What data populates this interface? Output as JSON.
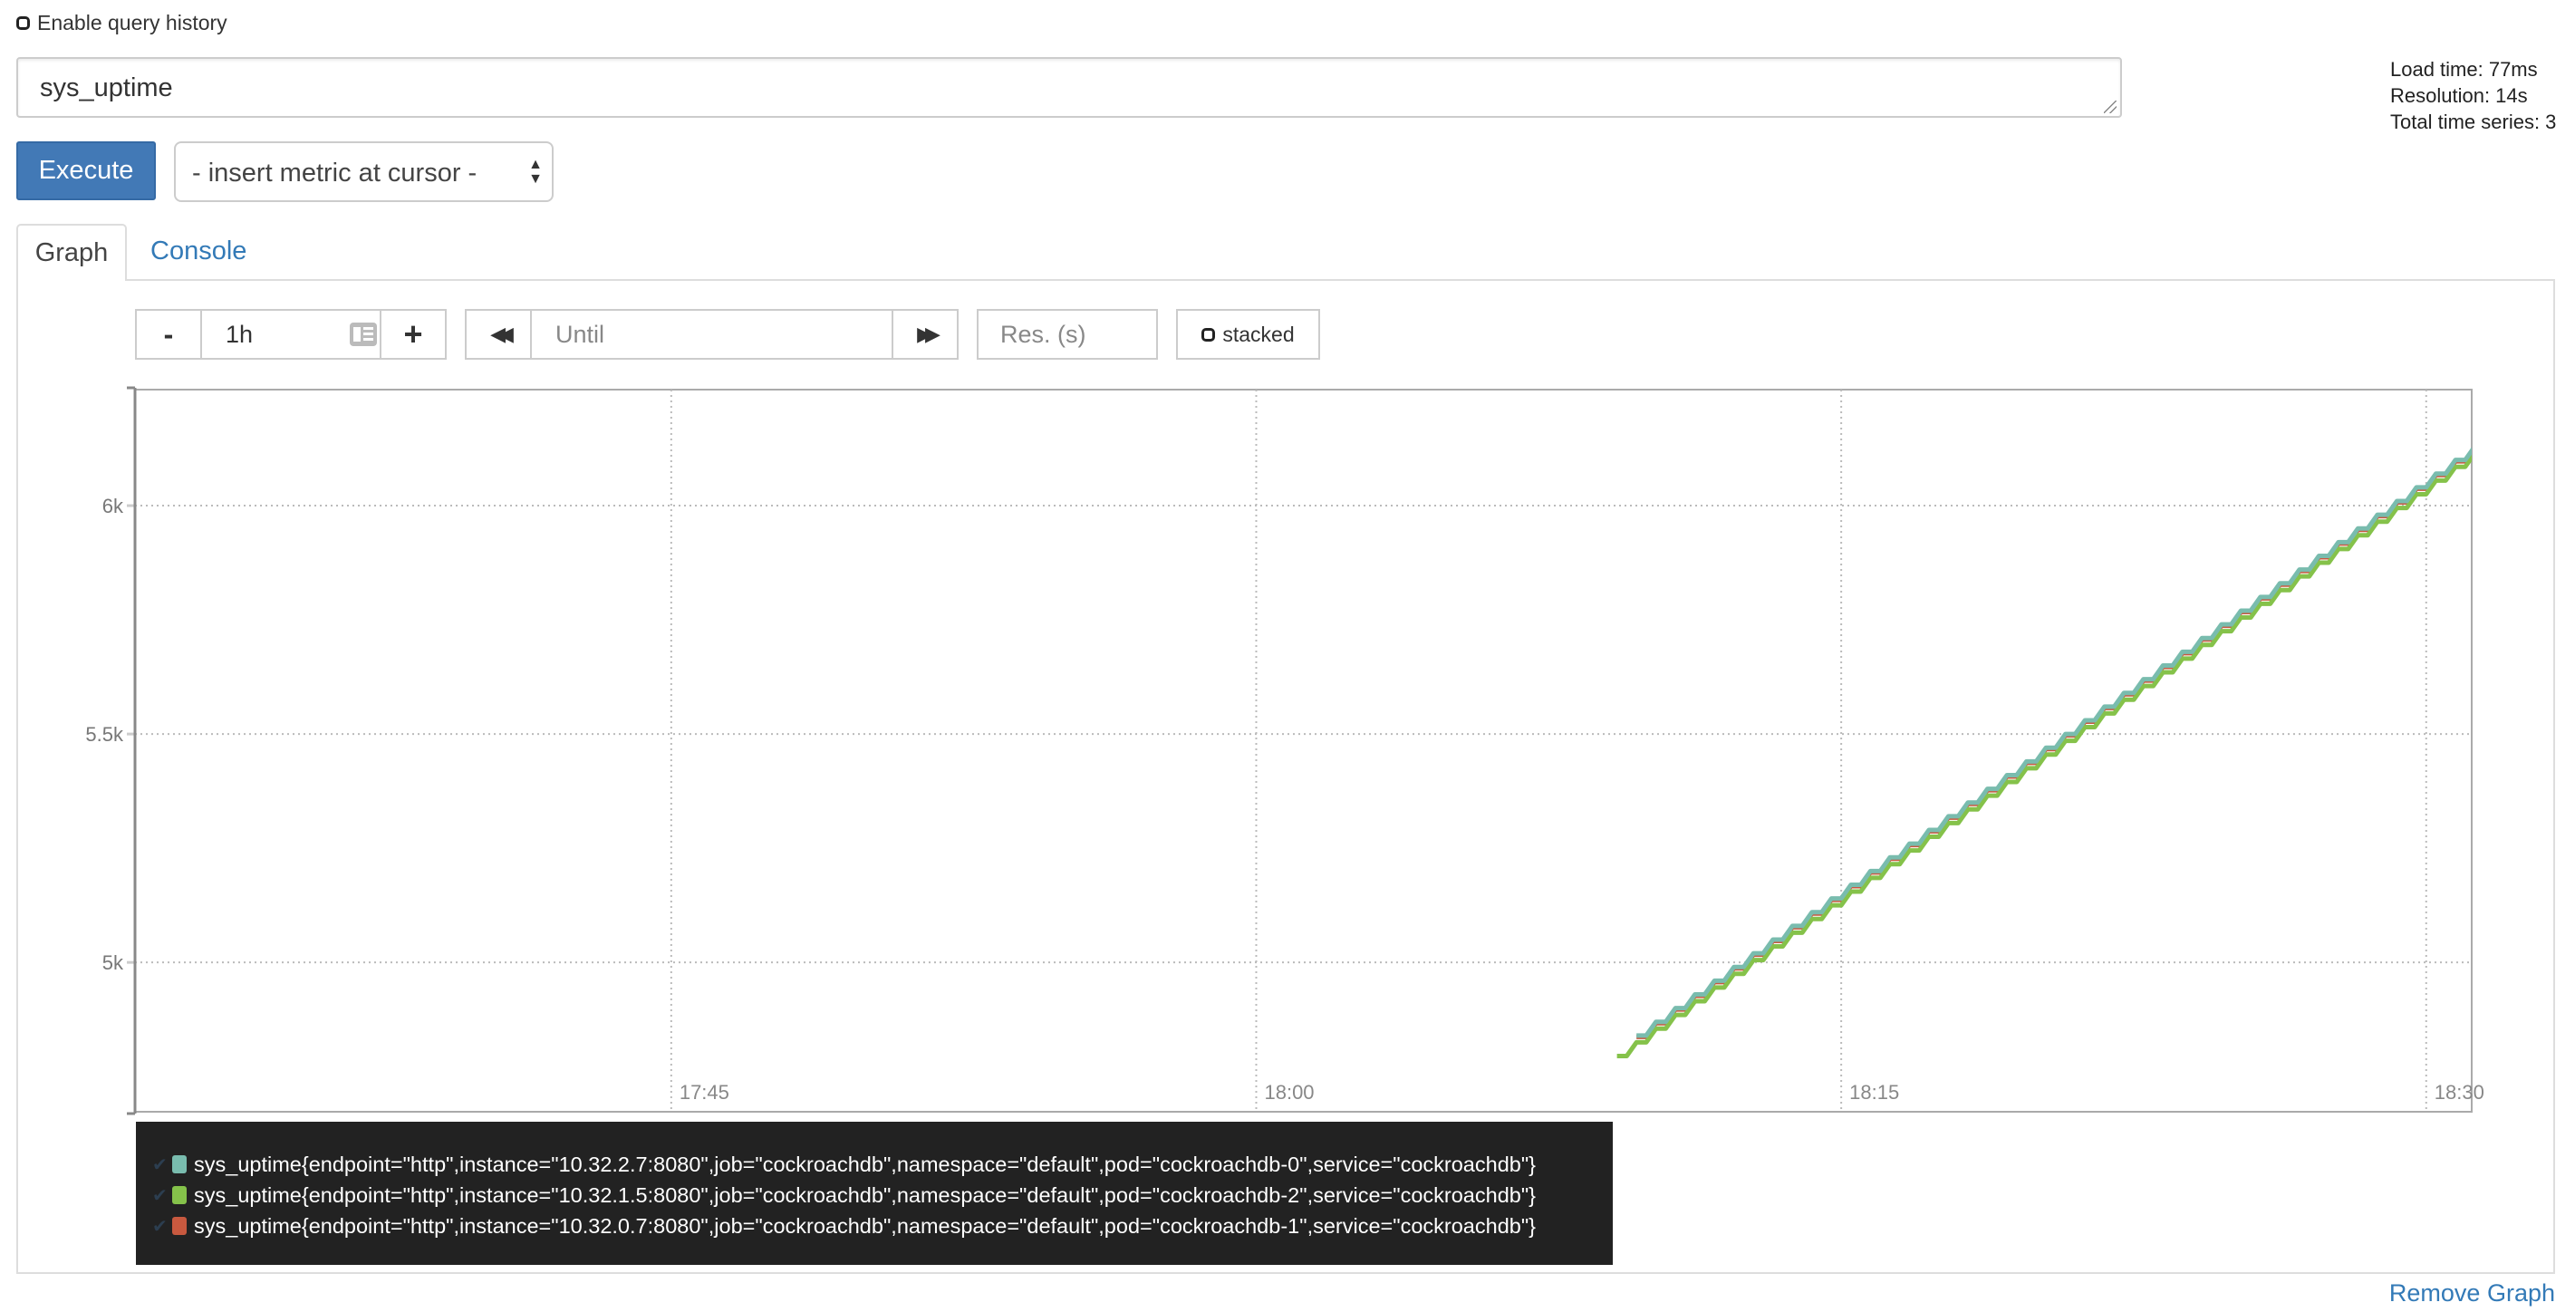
{
  "history": {
    "label": "Enable query history",
    "checked": false
  },
  "query": {
    "value": "sys_uptime"
  },
  "stats": {
    "load_time": "Load time: 77ms",
    "resolution": "Resolution: 14s",
    "total_series": "Total time series: 3"
  },
  "toolbar": {
    "execute_label": "Execute",
    "metric_select": "- insert metric at cursor -"
  },
  "tabs": [
    {
      "label": "Graph",
      "active": true
    },
    {
      "label": "Console",
      "active": false
    }
  ],
  "controls": {
    "minus": "-",
    "range": "1h",
    "plus": "+",
    "until_placeholder": "Until",
    "resolution_placeholder": "Res. (s)",
    "stacked_label": "stacked",
    "stacked_checked": false
  },
  "chart_data": {
    "type": "line",
    "xlim": [
      "17:31:15",
      "18:31:10"
    ],
    "ylim": [
      4673,
      6254
    ],
    "grid": true,
    "x_ticks": [
      "17:45",
      "18:00",
      "18:15",
      "18:30"
    ],
    "y_ticks": [
      {
        "value": 5000,
        "label": "5k"
      },
      {
        "value": 5500,
        "label": "5.5k"
      },
      {
        "value": 6000,
        "label": "6k"
      }
    ],
    "x": [
      "18:09:15",
      "18:09:45",
      "18:10:15",
      "18:10:45",
      "18:11:15",
      "18:11:45",
      "18:12:15",
      "18:12:45",
      "18:13:15",
      "18:13:45",
      "18:14:15",
      "18:14:45",
      "18:15:15",
      "18:15:45",
      "18:16:15",
      "18:16:45",
      "18:17:15",
      "18:17:45",
      "18:18:15",
      "18:18:45",
      "18:19:15",
      "18:19:45",
      "18:20:15",
      "18:20:45",
      "18:21:15",
      "18:21:45",
      "18:22:15",
      "18:22:45",
      "18:23:15",
      "18:23:45",
      "18:24:15",
      "18:24:45",
      "18:25:15",
      "18:25:45",
      "18:26:15",
      "18:26:45",
      "18:27:15",
      "18:27:45",
      "18:28:15",
      "18:28:45",
      "18:29:15",
      "18:29:45",
      "18:30:15",
      "18:30:45"
    ],
    "series": [
      {
        "name": "sys_uptime{endpoint=\"http\",instance=\"10.32.0.7:8080\",job=\"cockroachdb\",namespace=\"default\",pod=\"cockroachdb-1\",service=\"cockroachdb\"}",
        "color": "#c8593f",
        "values": [
          null,
          4837,
          4867,
          4897,
          4927,
          4957,
          4987,
          5017,
          5047,
          5077,
          5107,
          5137,
          5167,
          5197,
          5227,
          5257,
          5287,
          5317,
          5347,
          5377,
          5407,
          5437,
          5467,
          5497,
          5527,
          5557,
          5587,
          5617,
          5647,
          5677,
          5707,
          5737,
          5767,
          5797,
          5827,
          5857,
          5887,
          5917,
          5947,
          5977,
          6007,
          6037,
          6067,
          6097
        ]
      },
      {
        "name": "sys_uptime{endpoint=\"http\",instance=\"10.32.1.5:8080\",job=\"cockroachdb\",namespace=\"default\",pod=\"cockroachdb-2\",service=\"cockroachdb\"}",
        "color": "#85c24a",
        "values": [
          4795,
          4825,
          4855,
          4885,
          4915,
          4945,
          4975,
          5005,
          5035,
          5065,
          5095,
          5125,
          5155,
          5185,
          5215,
          5245,
          5275,
          5305,
          5335,
          5365,
          5395,
          5425,
          5455,
          5485,
          5515,
          5545,
          5575,
          5605,
          5635,
          5665,
          5695,
          5725,
          5755,
          5785,
          5815,
          5845,
          5875,
          5905,
          5935,
          5965,
          5995,
          6025,
          6055,
          6085
        ]
      },
      {
        "name": "sys_uptime{endpoint=\"http\",instance=\"10.32.2.7:8080\",job=\"cockroachdb\",namespace=\"default\",pod=\"cockroachdb-0\",service=\"cockroachdb\"}",
        "color": "#79bcae",
        "values": [
          null,
          4840,
          4870,
          4900,
          4930,
          4960,
          4990,
          5020,
          5050,
          5080,
          5110,
          5140,
          5170,
          5200,
          5230,
          5260,
          5290,
          5320,
          5350,
          5380,
          5410,
          5440,
          5470,
          5500,
          5530,
          5560,
          5590,
          5620,
          5650,
          5680,
          5710,
          5740,
          5770,
          5800,
          5830,
          5860,
          5890,
          5920,
          5950,
          5980,
          6010,
          6040,
          6070,
          6100
        ]
      }
    ]
  },
  "legend": [
    {
      "label": "sys_uptime{endpoint=\"http\",instance=\"10.32.2.7:8080\",job=\"cockroachdb\",namespace=\"default\",pod=\"cockroachdb-0\",service=\"cockroachdb\"}",
      "color": "#79bcae"
    },
    {
      "label": "sys_uptime{endpoint=\"http\",instance=\"10.32.1.5:8080\",job=\"cockroachdb\",namespace=\"default\",pod=\"cockroachdb-2\",service=\"cockroachdb\"}",
      "color": "#85c24a"
    },
    {
      "label": "sys_uptime{endpoint=\"http\",instance=\"10.32.0.7:8080\",job=\"cockroachdb\",namespace=\"default\",pod=\"cockroachdb-1\",service=\"cockroachdb\"}",
      "color": "#c8593f"
    }
  ],
  "footer": {
    "remove_graph": "Remove Graph"
  }
}
